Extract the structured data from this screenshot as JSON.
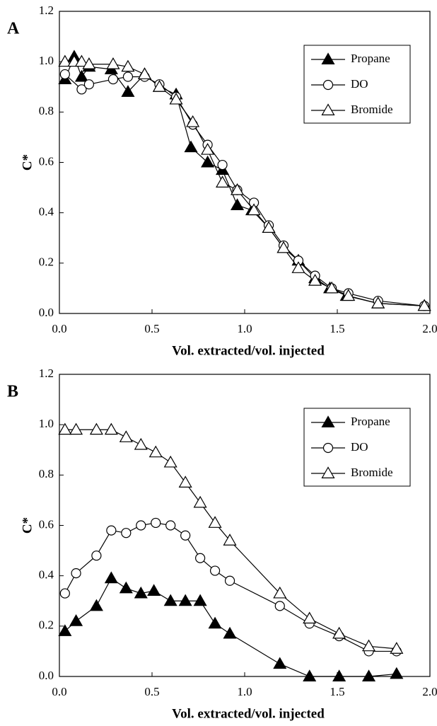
{
  "chart_data": [
    {
      "type": "line",
      "panel_label": "A",
      "ylabel": "C*",
      "xlabel": "Vol. extracted/vol. injected",
      "xlim": [
        0,
        2
      ],
      "ylim": [
        0,
        1.2
      ],
      "xticks": [
        {
          "value": 0,
          "label": "0.0"
        },
        {
          "value": 0.5,
          "label": "0.5"
        },
        {
          "value": 1,
          "label": "1.0"
        },
        {
          "value": 1.5,
          "label": "1.5"
        },
        {
          "value": 2,
          "label": "2.0"
        }
      ],
      "yticks": [
        {
          "value": 0,
          "label": "0.0"
        },
        {
          "value": 0.2,
          "label": "0.2"
        },
        {
          "value": 0.4,
          "label": "0.4"
        },
        {
          "value": 0.6,
          "label": "0.6"
        },
        {
          "value": 0.8,
          "label": "0.8"
        },
        {
          "value": 1,
          "label": "1.0"
        },
        {
          "value": 1.2,
          "label": "1.2"
        }
      ],
      "legend": "upper right",
      "grid": false,
      "series": [
        {
          "name": "Propane",
          "color": "#000000",
          "marker": "filled-triangle",
          "x": [
            0.03,
            0.08,
            0.12,
            0.16,
            0.28,
            0.37,
            0.46,
            0.54,
            0.63,
            0.71,
            0.8,
            0.88,
            0.96,
            1.04,
            1.13,
            1.21,
            1.29,
            1.38,
            1.46,
            1.55,
            1.72,
            1.97
          ],
          "values": [
            0.93,
            1.02,
            0.94,
            0.98,
            0.97,
            0.88,
            0.95,
            0.9,
            0.87,
            0.66,
            0.6,
            0.57,
            0.43,
            0.41,
            0.34,
            0.26,
            0.21,
            0.14,
            0.1,
            0.07,
            0.04,
            0.03
          ]
        },
        {
          "name": "DO",
          "color": "#000000",
          "marker": "circle",
          "x": [
            0.03,
            0.12,
            0.16,
            0.29,
            0.37,
            0.46,
            0.54,
            0.63,
            0.72,
            0.8,
            0.88,
            0.96,
            1.05,
            1.13,
            1.21,
            1.29,
            1.38,
            1.47,
            1.56,
            1.72,
            1.97
          ],
          "values": [
            0.95,
            0.89,
            0.91,
            0.93,
            0.94,
            0.94,
            0.91,
            0.86,
            0.75,
            0.67,
            0.59,
            0.49,
            0.44,
            0.35,
            0.27,
            0.21,
            0.15,
            0.1,
            0.08,
            0.05,
            0.03
          ]
        },
        {
          "name": "Bromide",
          "color": "#000000",
          "marker": "triangle",
          "x": [
            0.03,
            0.08,
            0.12,
            0.16,
            0.29,
            0.37,
            0.46,
            0.54,
            0.63,
            0.72,
            0.8,
            0.88,
            0.96,
            1.05,
            1.13,
            1.21,
            1.29,
            1.38,
            1.47,
            1.56,
            1.72,
            1.97
          ],
          "values": [
            1.0,
            1.0,
            1.0,
            0.99,
            0.99,
            0.98,
            0.95,
            0.9,
            0.85,
            0.76,
            0.65,
            0.52,
            0.49,
            0.41,
            0.34,
            0.26,
            0.18,
            0.13,
            0.1,
            0.07,
            0.04,
            0.03
          ]
        }
      ]
    },
    {
      "type": "line",
      "panel_label": "B",
      "ylabel": "C*",
      "xlabel": "Vol. extracted/vol. injected",
      "xlim": [
        0,
        2
      ],
      "ylim": [
        0,
        1.2
      ],
      "xticks": [
        {
          "value": 0,
          "label": "0.0"
        },
        {
          "value": 0.5,
          "label": "0.5"
        },
        {
          "value": 1,
          "label": "1.0"
        },
        {
          "value": 1.5,
          "label": "1.5"
        },
        {
          "value": 2,
          "label": "2.0"
        }
      ],
      "yticks": [
        {
          "value": 0,
          "label": "0.0"
        },
        {
          "value": 0.2,
          "label": "0.2"
        },
        {
          "value": 0.4,
          "label": "0.4"
        },
        {
          "value": 0.6,
          "label": "0.6"
        },
        {
          "value": 0.8,
          "label": "0.8"
        },
        {
          "value": 1,
          "label": "1.0"
        },
        {
          "value": 1.2,
          "label": "1.2"
        }
      ],
      "legend": "upper right",
      "grid": false,
      "series": [
        {
          "name": "Propane",
          "color": "#000000",
          "marker": "filled-triangle",
          "x": [
            0.03,
            0.09,
            0.2,
            0.28,
            0.36,
            0.44,
            0.51,
            0.6,
            0.68,
            0.76,
            0.84,
            0.92,
            1.19,
            1.35,
            1.51,
            1.67,
            1.82
          ],
          "values": [
            0.18,
            0.22,
            0.28,
            0.39,
            0.35,
            0.33,
            0.34,
            0.3,
            0.3,
            0.3,
            0.21,
            0.17,
            0.05,
            0.0,
            0.0,
            0.0,
            0.01
          ]
        },
        {
          "name": "DO",
          "color": "#000000",
          "marker": "circle",
          "x": [
            0.03,
            0.09,
            0.2,
            0.28,
            0.36,
            0.44,
            0.52,
            0.6,
            0.68,
            0.76,
            0.84,
            0.92,
            1.19,
            1.35,
            1.51,
            1.67,
            1.82
          ],
          "values": [
            0.33,
            0.41,
            0.48,
            0.58,
            0.57,
            0.6,
            0.61,
            0.6,
            0.56,
            0.47,
            0.42,
            0.38,
            0.28,
            0.21,
            0.16,
            0.1,
            0.1
          ]
        },
        {
          "name": "Bromide",
          "color": "#000000",
          "marker": "triangle",
          "x": [
            0.03,
            0.09,
            0.2,
            0.28,
            0.36,
            0.44,
            0.52,
            0.6,
            0.68,
            0.76,
            0.84,
            0.92,
            1.19,
            1.35,
            1.51,
            1.67,
            1.82
          ],
          "values": [
            0.98,
            0.98,
            0.98,
            0.98,
            0.95,
            0.92,
            0.89,
            0.85,
            0.77,
            0.69,
            0.61,
            0.54,
            0.33,
            0.23,
            0.17,
            0.12,
            0.11
          ]
        }
      ]
    }
  ]
}
